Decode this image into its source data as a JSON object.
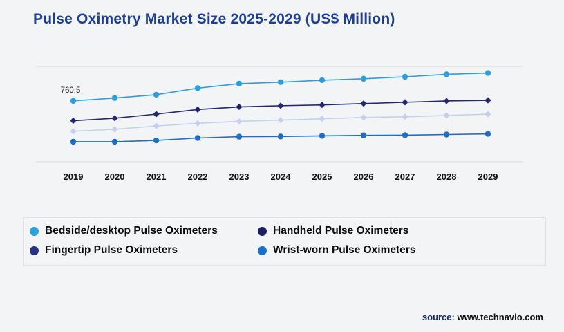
{
  "title": "Pulse Oximetry Market Size 2025-2029 (US$ Million)",
  "annotation": {
    "text": "760.5"
  },
  "source": {
    "label": "source:",
    "url": "www.technavio.com"
  },
  "chart_data": {
    "type": "line",
    "title": "Pulse Oximetry Market Size 2025-2029 (US$ Million)",
    "x": [
      "2019",
      "2020",
      "2021",
      "2022",
      "2023",
      "2024",
      "2025",
      "2026",
      "2027",
      "2028",
      "2029"
    ],
    "ylim": [
      390,
      970
    ],
    "grid": "top-bottom-horizontal",
    "legend_position": "bottom",
    "series": [
      {
        "name": "Bedside/desktop Pulse Oximeters",
        "legend_color": "#2d9fd8",
        "line_color": "#2d9fd8",
        "marker": "circle",
        "values": [
          760.5,
          778,
          798,
          838,
          865,
          874,
          886,
          895,
          907,
          922,
          930
        ]
      },
      {
        "name": "Handheld Pulse Oximeters",
        "legend_color": "#1b1f63",
        "line_color": "#23276f",
        "marker": "diamond",
        "values": [
          640,
          655,
          680,
          708,
          724,
          731,
          736,
          744,
          752,
          760,
          764
        ]
      },
      {
        "name": "Fingertip Pulse Oximeters",
        "legend_color": "#28317c",
        "line_color": "#c3d0ee",
        "marker": "diamond",
        "values": [
          576,
          588,
          608,
          624,
          636,
          644,
          652,
          660,
          664,
          672,
          680
        ]
      },
      {
        "name": "Wrist-worn Pulse Oximeters",
        "legend_color": "#1c6fc4",
        "line_color": "#1c6fc4",
        "marker": "circle",
        "values": [
          512,
          512,
          520,
          535,
          543,
          544,
          548,
          551,
          552,
          556,
          560
        ]
      }
    ]
  }
}
